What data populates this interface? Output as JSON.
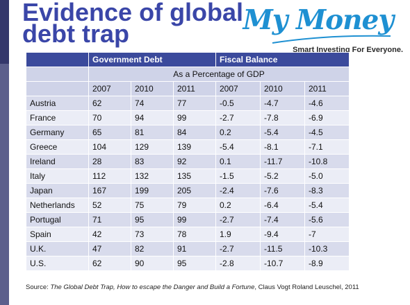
{
  "title": {
    "line1": "Evidence of global",
    "line2": "debt trap"
  },
  "logo": {
    "script": "My Money",
    "tagline": "Smart Investing For Everyone."
  },
  "table": {
    "group_headers": [
      "Government Debt",
      "Fiscal Balance"
    ],
    "subheader": "As a Percentage of GDP",
    "years": [
      "2007",
      "2010",
      "2011",
      "2007",
      "2010",
      "2011"
    ],
    "rows": [
      [
        "Austria",
        "62",
        "74",
        "77",
        "-0.5",
        "-4.7",
        "-4.6"
      ],
      [
        "France",
        "70",
        "94",
        "99",
        "-2.7",
        "-7.8",
        "-6.9"
      ],
      [
        "Germany",
        "65",
        "81",
        "84",
        "0.2",
        "-5.4",
        "-4.5"
      ],
      [
        "Greece",
        "104",
        "129",
        "139",
        "-5.4",
        "-8.1",
        "-7.1"
      ],
      [
        "Ireland",
        "28",
        "83",
        "92",
        "0.1",
        "-11.7",
        "-10.8"
      ],
      [
        "Italy",
        "112",
        "132",
        "135",
        "-1.5",
        "-5.2",
        "-5.0"
      ],
      [
        "Japan",
        "167",
        "199",
        "205",
        "-2.4",
        "-7.6",
        "-8.3"
      ],
      [
        "Netherlands",
        "52",
        "75",
        "79",
        "0.2",
        "-6.4",
        "-5.4"
      ],
      [
        "Portugal",
        "71",
        "95",
        "99",
        "-2.7",
        "-7.4",
        "-5.6"
      ],
      [
        "Spain",
        "42",
        "73",
        "78",
        "1.9",
        "-9.4",
        "-7"
      ],
      [
        "U.K.",
        "47",
        "82",
        "91",
        "-2.7",
        "-11.5",
        "-10.3"
      ],
      [
        "U.S.",
        "62",
        "90",
        "95",
        "-2.8",
        "-10.7",
        "-8.9"
      ]
    ]
  },
  "source": {
    "prefix": "Source: ",
    "work": "The Global Debt Trap, How to escape the Danger and Build a Fortune",
    "suffix": ", Claus Vogt Roland Leuschel, 2011"
  },
  "colors": {
    "title": "#3a46a8",
    "header": "#3b4a9c",
    "logo": "#1e90d2",
    "side_bar": "#5c5f8c"
  }
}
